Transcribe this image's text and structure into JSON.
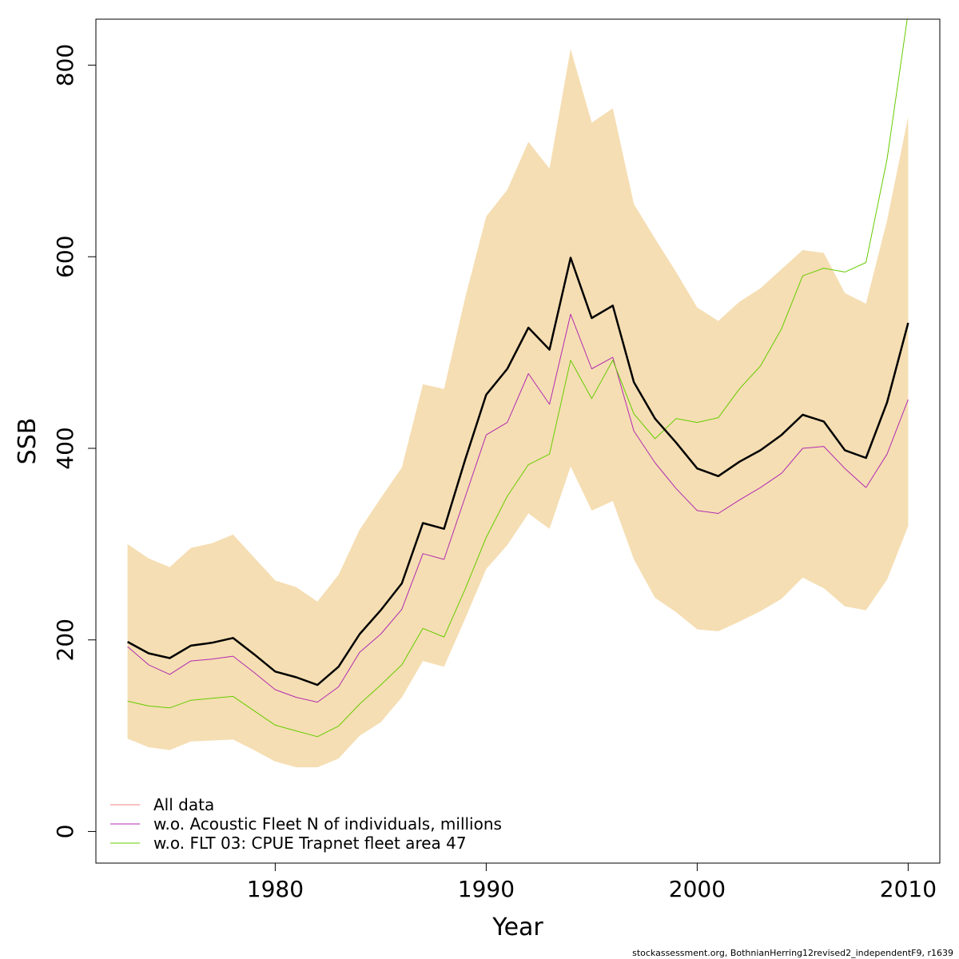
{
  "chart_data": {
    "type": "line",
    "xlabel": "Year",
    "ylabel": "SSB",
    "xlim": [
      1971.5,
      2011.5
    ],
    "ylim": [
      -33,
      848
    ],
    "x_ticks": [
      1980,
      1990,
      2000,
      2010
    ],
    "y_ticks": [
      0,
      200,
      400,
      600,
      800
    ],
    "x_tick_labels": [
      "1980",
      "1990",
      "2000",
      "2010"
    ],
    "y_tick_labels": [
      "0",
      "200",
      "400",
      "600",
      "800"
    ],
    "grid": false,
    "legend_position": "bottom-left",
    "x": [
      1973,
      1974,
      1975,
      1976,
      1977,
      1978,
      1979,
      1980,
      1981,
      1982,
      1983,
      1984,
      1985,
      1986,
      1987,
      1988,
      1989,
      1990,
      1991,
      1992,
      1993,
      1994,
      1995,
      1996,
      1997,
      1998,
      1999,
      2000,
      2001,
      2002,
      2003,
      2004,
      2005,
      2006,
      2007,
      2008,
      2009,
      2010
    ],
    "confidence_band": {
      "color": "#F5DEB3",
      "upper": [
        300,
        285,
        276,
        296,
        301,
        310,
        286,
        262,
        255,
        240,
        268,
        315,
        348,
        380,
        467,
        462,
        557,
        642,
        670,
        720,
        692,
        817,
        740,
        755,
        655,
        619,
        584,
        547,
        533,
        553,
        567,
        587,
        607,
        604,
        562,
        551,
        638,
        746
      ],
      "lower": [
        97,
        88,
        85,
        94,
        95,
        96,
        85,
        73,
        67,
        67,
        76,
        100,
        114,
        140,
        178,
        172,
        222,
        274,
        299,
        332,
        316,
        381,
        335,
        345,
        284,
        244,
        229,
        211,
        209,
        219,
        230,
        243,
        265,
        254,
        235,
        231,
        263,
        319
      ]
    },
    "series": [
      {
        "name": "All data",
        "color": "#000000",
        "legend_color": "#F08080",
        "width": 2.5,
        "values": [
          198,
          186,
          181,
          194,
          197,
          202,
          185,
          167,
          161,
          153,
          172,
          206,
          231,
          259,
          322,
          316,
          388,
          456,
          483,
          526,
          503,
          599,
          536,
          549,
          469,
          431,
          406,
          379,
          371,
          386,
          398,
          414,
          435,
          428,
          398,
          390,
          448,
          531
        ]
      },
      {
        "name": "w.o. Acoustic Fleet  N of individuals, millions",
        "color": "#B22AB2",
        "legend_color": "#B22AB2",
        "width": 1,
        "values": [
          193,
          174,
          164,
          178,
          180,
          183,
          166,
          148,
          140,
          135,
          151,
          187,
          206,
          232,
          290,
          284,
          349,
          414,
          427,
          478,
          446,
          540,
          483,
          495,
          418,
          385,
          358,
          335,
          332,
          346,
          359,
          374,
          400,
          402,
          379,
          359,
          394,
          451
        ]
      },
      {
        "name": "w.o. FLT 03: CPUE Trapnet fleet area 47",
        "color": "#66CC00",
        "legend_color": "#66CC00",
        "width": 1,
        "values": [
          136,
          131,
          129,
          137,
          139,
          141,
          126,
          111,
          105,
          99,
          110,
          133,
          153,
          174,
          212,
          203,
          253,
          307,
          350,
          383,
          394,
          492,
          452,
          492,
          436,
          410,
          431,
          427,
          432,
          462,
          486,
          525,
          580,
          588,
          584,
          594,
          702,
          855
        ]
      }
    ]
  },
  "footer": "stockassessment.org, BothnianHerring12revised2_independentF9, r1639"
}
